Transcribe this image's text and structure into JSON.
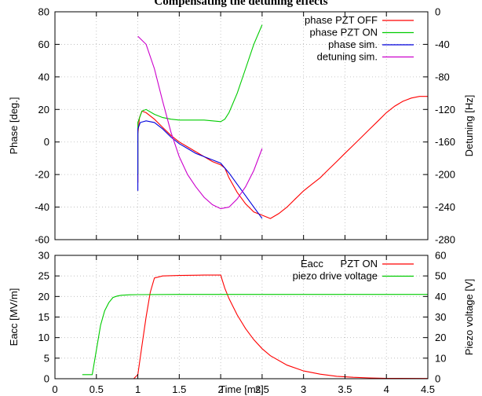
{
  "header_caption": "Compensating the detuning effects",
  "chart_data": [
    {
      "type": "line",
      "title": "",
      "xlim": [
        0,
        4.5
      ],
      "ylabel": "Phase [deg.]",
      "ylim": [
        -60,
        80
      ],
      "yticks": [
        -60,
        -40,
        -20,
        0,
        20,
        40,
        60,
        80
      ],
      "y2label": "Detuning [Hz]",
      "y2lim": [
        -280,
        0
      ],
      "y2ticks": [
        -280,
        -240,
        -200,
        -160,
        -120,
        -80,
        -40,
        0
      ],
      "grid": true,
      "legend_position": "top-right",
      "series": [
        {
          "name": "phase PZT OFF",
          "color": "#ff0000",
          "axis": "left",
          "x": [
            1.0,
            1.0,
            1.02,
            1.05,
            1.1,
            1.2,
            1.3,
            1.4,
            1.5,
            1.6,
            1.7,
            1.8,
            1.9,
            2.0,
            2.05,
            2.1,
            2.2,
            2.3,
            2.4,
            2.5,
            2.6,
            2.7,
            2.8,
            2.9,
            3.0,
            3.1,
            3.2,
            3.3,
            3.4,
            3.5,
            3.6,
            3.7,
            3.8,
            3.9,
            4.0,
            4.1,
            4.2,
            4.3,
            4.4,
            4.5
          ],
          "y": [
            -25,
            5,
            15,
            19,
            18,
            14,
            9,
            4,
            0,
            -3,
            -6,
            -9,
            -12,
            -14,
            -16,
            -22,
            -31,
            -38,
            -43,
            -45,
            -47,
            -44,
            -40,
            -35,
            -30,
            -26,
            -22,
            -17,
            -12,
            -7,
            -2,
            3,
            8,
            13,
            18,
            22,
            25,
            27,
            28,
            28
          ]
        },
        {
          "name": "phase PZT ON",
          "color": "#00cc00",
          "axis": "left",
          "x": [
            1.0,
            1.0,
            1.05,
            1.1,
            1.2,
            1.3,
            1.4,
            1.5,
            1.6,
            1.7,
            1.8,
            1.9,
            2.0,
            2.05,
            2.1,
            2.2,
            2.3,
            2.4,
            2.5
          ],
          "y": [
            -20,
            12,
            19,
            20,
            17,
            15,
            14,
            13.5,
            13.5,
            13.5,
            13.5,
            13,
            12.5,
            14,
            18,
            30,
            45,
            60,
            72
          ]
        },
        {
          "name": "phase sim.",
          "color": "#0000dd",
          "axis": "left",
          "x": [
            1.0,
            1.0,
            1.03,
            1.1,
            1.2,
            1.3,
            1.4,
            1.5,
            1.6,
            1.7,
            1.8,
            1.9,
            2.0,
            2.1,
            2.2,
            2.3,
            2.4,
            2.5
          ],
          "y": [
            -30,
            8,
            12,
            13,
            12,
            8,
            3,
            -1,
            -4,
            -7,
            -9,
            -11,
            -13,
            -19,
            -26,
            -33,
            -40,
            -47
          ]
        },
        {
          "name": "detuning sim.",
          "color": "#cc00cc",
          "axis": "right",
          "x": [
            1.0,
            1.1,
            1.2,
            1.3,
            1.4,
            1.5,
            1.6,
            1.7,
            1.8,
            1.9,
            2.0,
            2.1,
            2.2,
            2.3,
            2.4,
            2.5
          ],
          "y": [
            -30,
            -40,
            -70,
            -110,
            -148,
            -178,
            -200,
            -215,
            -228,
            -237,
            -242,
            -240,
            -230,
            -215,
            -195,
            -168
          ]
        }
      ]
    },
    {
      "type": "line",
      "title": "",
      "xlabel": "Time [ms]",
      "xlim": [
        0,
        4.5
      ],
      "xticks": [
        0,
        0.5,
        1,
        1.5,
        2,
        2.5,
        3,
        3.5,
        4,
        4.5
      ],
      "ylabel": "Eacc [MV/m]",
      "ylim": [
        0,
        30
      ],
      "yticks": [
        0,
        5,
        10,
        15,
        20,
        25,
        30
      ],
      "y2label": "Piezo voltage [V]",
      "y2lim": [
        0,
        60
      ],
      "y2ticks": [
        0,
        10,
        20,
        30,
        40,
        50,
        60
      ],
      "grid": true,
      "legend_position": "top-right",
      "series": [
        {
          "name": "Eacc      PZT ON",
          "color": "#ff0000",
          "axis": "left",
          "x": [
            0,
            0.95,
            1.0,
            1.05,
            1.1,
            1.15,
            1.2,
            1.3,
            1.5,
            1.8,
            2.0,
            2.05,
            2.1,
            2.2,
            2.3,
            2.4,
            2.5,
            2.6,
            2.8,
            3.0,
            3.2,
            3.4,
            3.6,
            3.8,
            4.0,
            4.5
          ],
          "y": [
            0,
            0,
            1,
            8,
            15,
            21,
            24.5,
            25,
            25.1,
            25.2,
            25.2,
            22,
            19.5,
            15.5,
            12.2,
            9.5,
            7.3,
            5.6,
            3.3,
            1.9,
            1.1,
            0.6,
            0.35,
            0.2,
            0.1,
            0.05
          ]
        },
        {
          "name": "piezo drive voltage",
          "color": "#00cc00",
          "axis": "right",
          "x": [
            0.33,
            0.45,
            0.5,
            0.55,
            0.6,
            0.65,
            0.7,
            0.75,
            0.8,
            0.9,
            1.0,
            1.5,
            2.0,
            2.5,
            3.0,
            3.5,
            4.0,
            4.5
          ],
          "y": [
            2,
            2,
            14,
            26,
            33,
            37,
            39.5,
            40.2,
            40.6,
            40.8,
            40.9,
            41,
            41,
            41,
            41,
            41,
            41,
            41
          ]
        }
      ]
    }
  ]
}
